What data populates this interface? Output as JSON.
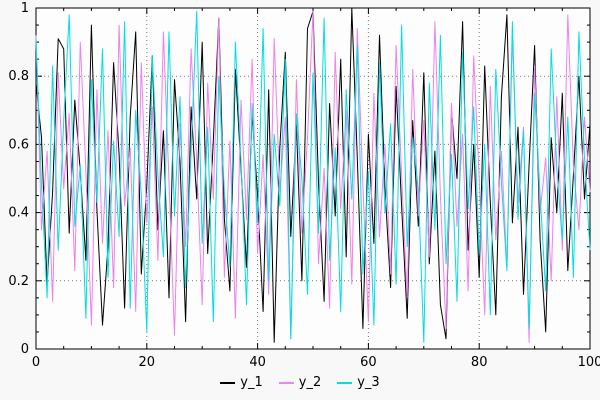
{
  "chart_data": {
    "type": "line",
    "title": "",
    "xlabel": "",
    "ylabel": "",
    "xlim": [
      0,
      100
    ],
    "ylim": [
      0,
      1
    ],
    "grid": true,
    "grid_style": "dotted",
    "legend_position": "bottom-center",
    "x_ticks": [
      0,
      20,
      40,
      60,
      80,
      100
    ],
    "x_tick_labels": [
      "0",
      "20",
      "40",
      "60",
      "80",
      "100"
    ],
    "y_ticks": [
      0,
      0.2,
      0.4,
      0.6,
      0.8,
      1
    ],
    "y_tick_labels": [
      "0",
      "0.2",
      "0.4",
      "0.6",
      "0.8",
      "1"
    ],
    "series": [
      {
        "name": "y_1",
        "color": "#000000",
        "values": [
          0.78,
          0.62,
          0.19,
          0.46,
          0.91,
          0.88,
          0.34,
          0.73,
          0.52,
          0.26,
          0.95,
          0.41,
          0.07,
          0.3,
          0.84,
          0.57,
          0.12,
          0.68,
          0.93,
          0.22,
          0.48,
          0.86,
          0.35,
          0.64,
          0.15,
          0.79,
          0.55,
          0.08,
          0.71,
          0.44,
          0.9,
          0.28,
          0.61,
          0.97,
          0.38,
          0.17,
          0.82,
          0.53,
          0.24,
          0.69,
          0.45,
          0.11,
          0.76,
          0.02,
          0.59,
          0.87,
          0.33,
          0.66,
          0.2,
          0.94,
          0.99,
          0.49,
          0.14,
          0.72,
          0.39,
          0.85,
          0.27,
          1.0,
          0.56,
          0.06,
          0.63,
          0.31,
          0.92,
          0.47,
          0.18,
          0.77,
          0.42,
          0.09,
          0.67,
          0.36,
          0.81,
          0.25,
          0.58,
          0.13,
          0.03,
          0.7,
          0.5,
          0.96,
          0.29,
          0.6,
          0.21,
          0.83,
          0.43,
          0.1,
          0.74,
          0.98,
          0.37,
          0.65,
          0.16,
          0.54,
          0.89,
          0.32,
          0.05,
          0.62,
          0.4,
          0.75,
          0.23,
          0.51,
          0.8,
          0.44,
          0.66
        ]
      },
      {
        "name": "y_2",
        "color": "#ee82ee",
        "values": [
          0.92,
          0.35,
          0.58,
          0.14,
          0.81,
          0.47,
          0.69,
          0.23,
          0.9,
          0.52,
          0.07,
          0.76,
          0.31,
          0.64,
          0.18,
          0.95,
          0.42,
          0.59,
          0.11,
          0.84,
          0.37,
          0.71,
          0.26,
          0.93,
          0.49,
          0.04,
          0.66,
          0.3,
          0.88,
          0.55,
          0.13,
          0.78,
          0.44,
          0.97,
          0.21,
          0.61,
          0.09,
          0.73,
          0.38,
          0.85,
          0.28,
          0.57,
          0.16,
          0.91,
          0.46,
          0.68,
          0.03,
          0.79,
          0.34,
          0.62,
          0.99,
          0.25,
          0.53,
          0.12,
          0.87,
          0.41,
          0.7,
          0.19,
          0.94,
          0.48,
          0.08,
          0.75,
          0.33,
          0.6,
          0.22,
          0.89,
          0.51,
          0.15,
          0.82,
          0.39,
          0.67,
          0.27,
          0.96,
          0.45,
          0.06,
          0.72,
          0.36,
          0.63,
          0.17,
          0.86,
          0.5,
          0.1,
          0.77,
          0.32,
          0.58,
          0.24,
          0.92,
          0.43,
          0.65,
          0.02,
          0.83,
          0.4,
          0.56,
          0.2,
          0.74,
          0.29,
          0.98,
          0.54,
          0.35,
          0.68,
          0.46
        ]
      },
      {
        "name": "y_3",
        "color": "#00e0e0",
        "values": [
          0.91,
          0.48,
          0.15,
          0.83,
          0.29,
          0.67,
          0.98,
          0.36,
          0.54,
          0.09,
          0.79,
          0.43,
          0.88,
          0.21,
          0.61,
          0.33,
          0.96,
          0.12,
          0.7,
          0.45,
          0.05,
          0.86,
          0.51,
          0.27,
          0.93,
          0.39,
          0.74,
          0.18,
          0.58,
          0.99,
          0.31,
          0.65,
          0.08,
          0.8,
          0.46,
          0.24,
          0.9,
          0.55,
          0.13,
          0.72,
          0.37,
          0.94,
          0.2,
          0.63,
          0.42,
          0.85,
          0.03,
          0.69,
          0.5,
          0.16,
          0.81,
          0.34,
          0.97,
          0.26,
          0.59,
          0.11,
          0.76,
          0.44,
          0.89,
          0.22,
          0.52,
          0.07,
          0.84,
          0.4,
          0.66,
          0.19,
          0.95,
          0.3,
          0.62,
          0.47,
          0.02,
          0.78,
          0.35,
          0.92,
          0.25,
          0.57,
          0.14,
          0.87,
          0.41,
          0.71,
          0.28,
          0.6,
          0.1,
          0.82,
          0.49,
          0.23,
          0.96,
          0.38,
          0.64,
          0.06,
          0.75,
          0.45,
          0.17,
          0.88,
          0.53,
          0.32,
          0.68,
          0.21,
          0.93,
          0.56,
          0.29
        ]
      }
    ]
  }
}
